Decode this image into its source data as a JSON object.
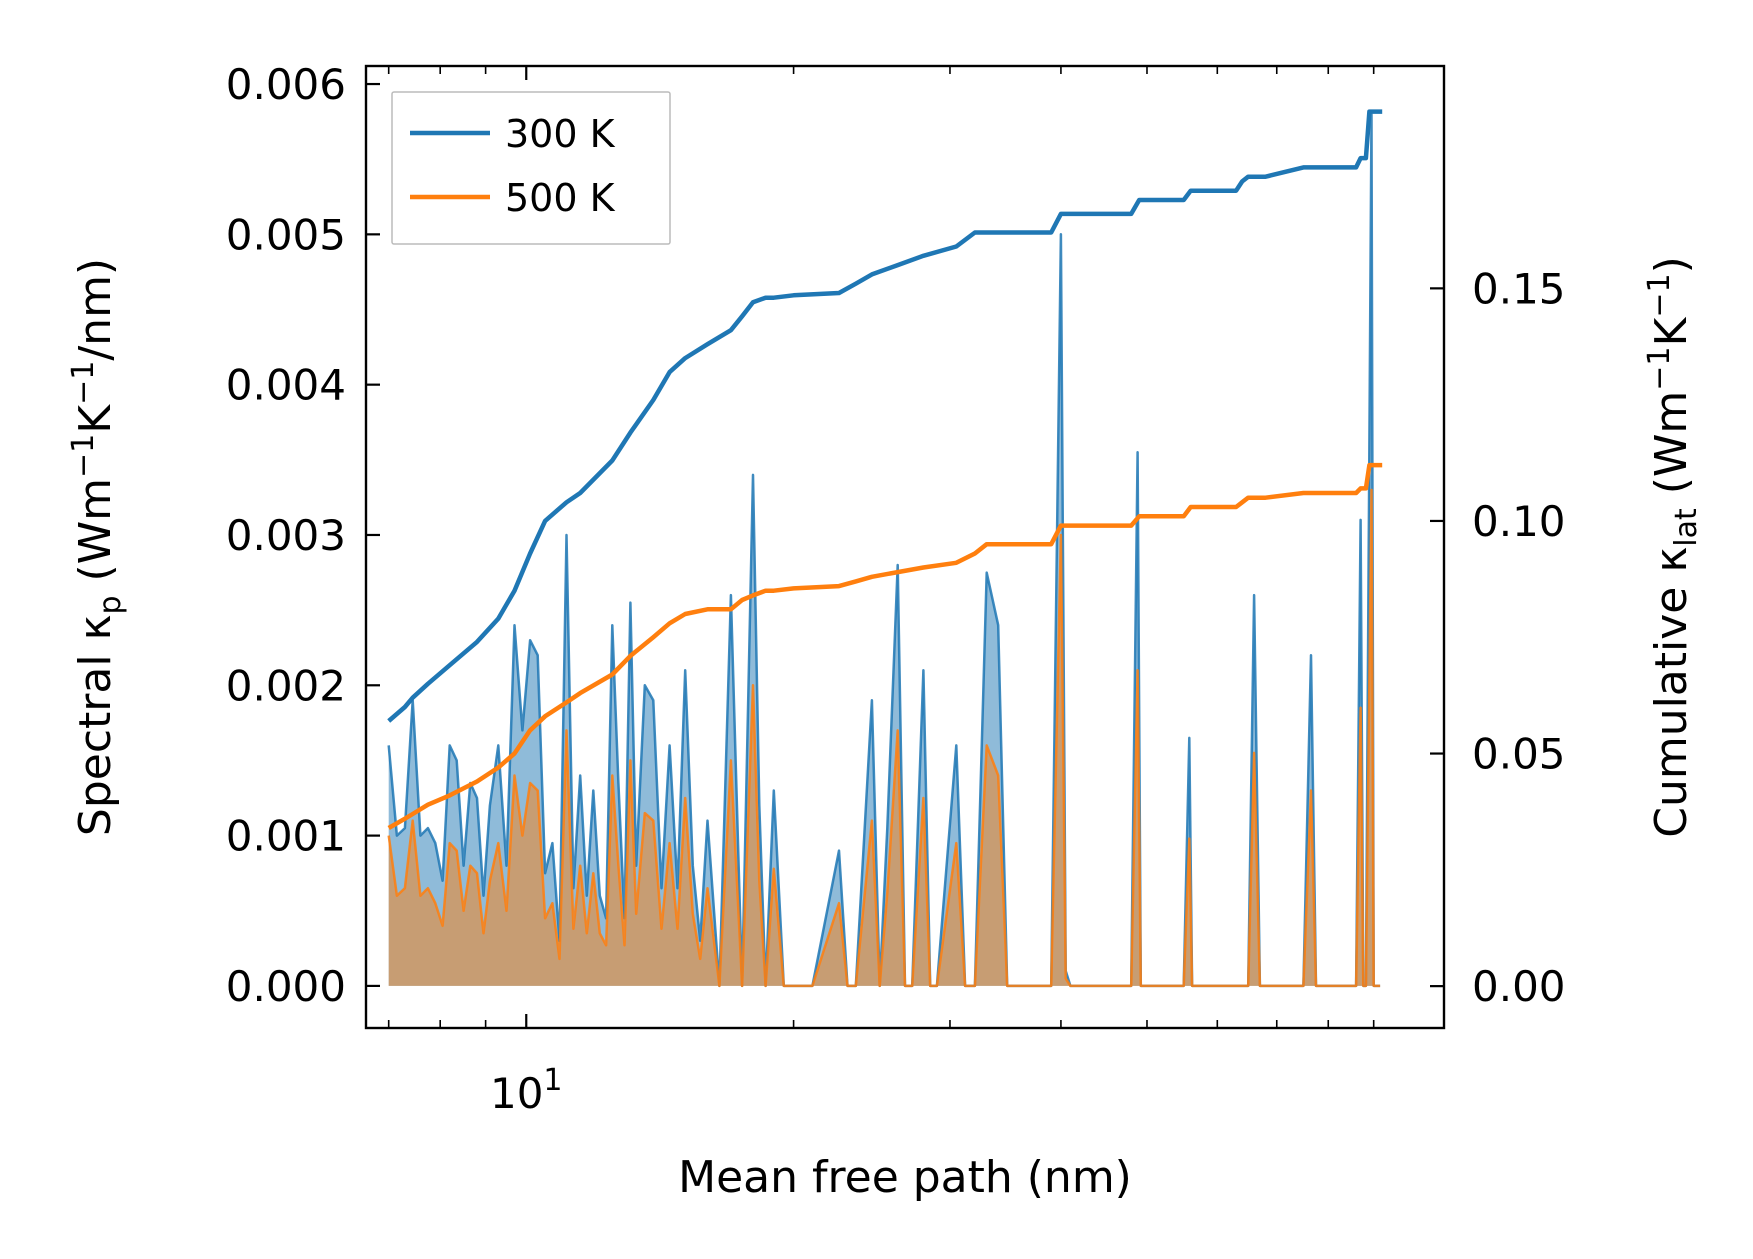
{
  "chart_data": {
    "type": "line",
    "xlabel": "Mean free path (nm)",
    "ylabel_left": {
      "main": "Spectral κ",
      "sub": "p",
      "open": " (Wm",
      "sup1": "−1",
      "mid": "K",
      "sup2": "−1",
      "close": "/nm)"
    },
    "ylabel_right": {
      "main": "Cumulative κ",
      "sub": "lat",
      "open": " (Wm",
      "sup1": "−1",
      "mid": "K",
      "sup2": "−1",
      "close": ")"
    },
    "x_scale": "log",
    "xlim": [
      6.6,
      108
    ],
    "ylim_left": [
      -0.00028,
      0.00612
    ],
    "ylim_right": [
      -0.009,
      0.1978
    ],
    "x_major_tick": {
      "base": "10",
      "exp": "1",
      "value": 10
    },
    "x_minor_ticks": [
      7,
      8,
      9,
      20,
      30,
      40,
      50,
      60,
      70,
      80,
      90
    ],
    "y_left_ticks": [
      {
        "value": 0.0,
        "label": "0.000"
      },
      {
        "value": 0.001,
        "label": "0.001"
      },
      {
        "value": 0.002,
        "label": "0.002"
      },
      {
        "value": 0.003,
        "label": "0.003"
      },
      {
        "value": 0.004,
        "label": "0.004"
      },
      {
        "value": 0.005,
        "label": "0.005"
      },
      {
        "value": 0.006,
        "label": "0.006"
      }
    ],
    "y_right_ticks": [
      {
        "value": 0.0,
        "label": "0.00"
      },
      {
        "value": 0.05,
        "label": "0.05"
      },
      {
        "value": 0.1,
        "label": "0.10"
      },
      {
        "value": 0.15,
        "label": "0.15"
      }
    ],
    "legend": {
      "position": "top-left",
      "entries": [
        {
          "label": "300 K",
          "color": "#1f77b4"
        },
        {
          "label": "500 K",
          "color": "#ff7f0e"
        }
      ]
    },
    "series": [
      {
        "name": "300 K spectral",
        "axis": "left",
        "kind": "filled-line",
        "color": "#1f77b4",
        "fill_color": "#1f77b4",
        "fill_opacity": 0.5,
        "x": [
          7.0,
          7.15,
          7.3,
          7.45,
          7.6,
          7.75,
          7.9,
          8.05,
          8.2,
          8.35,
          8.5,
          8.65,
          8.8,
          8.95,
          9.1,
          9.3,
          9.5,
          9.7,
          9.9,
          10.1,
          10.3,
          10.5,
          10.7,
          10.9,
          11.1,
          11.3,
          11.5,
          11.7,
          11.9,
          12.1,
          12.3,
          12.5,
          12.7,
          12.9,
          13.1,
          13.3,
          13.6,
          13.9,
          14.2,
          14.5,
          14.8,
          15.1,
          15.4,
          15.7,
          16.0,
          16.5,
          17.0,
          17.5,
          18.0,
          18.3,
          18.6,
          19.0,
          19.5,
          20.0,
          21.0,
          22.5,
          23.0,
          23.5,
          24.5,
          25.0,
          25.5,
          26.2,
          26.7,
          27.2,
          28.0,
          28.5,
          29.0,
          30.5,
          31.2,
          32.0,
          33.0,
          34.0,
          34.8,
          35.5,
          36.3,
          37.0,
          39.0,
          40.0,
          40.5,
          41.0,
          42.0,
          48.0,
          48.8,
          49.2,
          50.0,
          55.0,
          55.8,
          56.2,
          57.0,
          63.0,
          64.0,
          65.0,
          66.0,
          67.0,
          68.0,
          75.0,
          76.5,
          77.5,
          86.0,
          87.0,
          87.6,
          88.2,
          89.5,
          90.0,
          90.5,
          91.5
        ],
        "y": [
          0.0016,
          0.001,
          0.00105,
          0.0019,
          0.001,
          0.00105,
          0.00095,
          0.0007,
          0.0016,
          0.0015,
          0.0008,
          0.00135,
          0.00125,
          0.0006,
          0.0012,
          0.0016,
          0.0008,
          0.0024,
          0.0017,
          0.0023,
          0.0022,
          0.00075,
          0.00095,
          0.0003,
          0.003,
          0.00065,
          0.0014,
          0.0006,
          0.0013,
          0.0006,
          0.00045,
          0.0024,
          0.00135,
          0.00045,
          0.00255,
          0.0008,
          0.002,
          0.0019,
          0.00065,
          0.0016,
          0.00065,
          0.0021,
          0.0008,
          0.0003,
          0.0011,
          0.0,
          0.0026,
          0.0,
          0.0034,
          0.0012,
          0.0,
          0.0013,
          0.0,
          0.0,
          0.0,
          0.0009,
          0.0,
          0.0,
          0.0019,
          0.0,
          0.00105,
          0.0028,
          0.0,
          0.0,
          0.0021,
          0.0,
          0.0,
          0.0016,
          0.0,
          0.0,
          0.00275,
          0.0024,
          0.0,
          0.0,
          0.0,
          0.0,
          0.0,
          0.005,
          0.0001,
          0.0,
          0.0,
          0.0,
          0.00355,
          0.0,
          0.0,
          0.0,
          0.00165,
          0.0,
          0.0,
          0.0,
          0.0,
          0.0,
          0.0026,
          0.0,
          0.0,
          0.0,
          0.0022,
          0.0,
          0.0,
          0.0031,
          0.0,
          0.0,
          0.0058,
          0.0,
          0.0,
          0.0
        ]
      },
      {
        "name": "500 K spectral",
        "axis": "left",
        "kind": "filled-line",
        "color": "#ff7f0e",
        "fill_color": "#ff7f0e",
        "fill_opacity": 0.5,
        "x": [
          7.0,
          7.15,
          7.3,
          7.45,
          7.6,
          7.75,
          7.9,
          8.05,
          8.2,
          8.35,
          8.5,
          8.65,
          8.8,
          8.95,
          9.1,
          9.3,
          9.5,
          9.7,
          9.9,
          10.1,
          10.3,
          10.5,
          10.7,
          10.9,
          11.1,
          11.3,
          11.5,
          11.7,
          11.9,
          12.1,
          12.3,
          12.5,
          12.7,
          12.9,
          13.1,
          13.3,
          13.6,
          13.9,
          14.2,
          14.5,
          14.8,
          15.1,
          15.4,
          15.7,
          16.0,
          16.5,
          17.0,
          17.5,
          18.0,
          18.3,
          18.6,
          19.0,
          19.5,
          20.0,
          21.0,
          22.5,
          23.0,
          23.5,
          24.5,
          25.0,
          25.5,
          26.2,
          26.7,
          27.2,
          28.0,
          28.5,
          29.0,
          30.5,
          31.2,
          32.0,
          33.0,
          34.0,
          34.8,
          35.5,
          36.3,
          37.0,
          39.0,
          40.0,
          40.5,
          41.0,
          42.0,
          48.0,
          48.8,
          49.2,
          50.0,
          55.0,
          55.8,
          56.2,
          57.0,
          63.0,
          64.0,
          65.0,
          66.0,
          67.0,
          68.0,
          75.0,
          76.5,
          77.5,
          86.0,
          87.0,
          87.6,
          88.2,
          89.5,
          90.0,
          90.5,
          91.5
        ],
        "y": [
          0.001,
          0.0006,
          0.00065,
          0.0011,
          0.0006,
          0.00065,
          0.00055,
          0.0004,
          0.00095,
          0.0009,
          0.0005,
          0.0008,
          0.00075,
          0.00035,
          0.0007,
          0.00095,
          0.0005,
          0.0014,
          0.001,
          0.00135,
          0.0013,
          0.00045,
          0.00055,
          0.00018,
          0.0017,
          0.00038,
          0.0008,
          0.00035,
          0.00075,
          0.00035,
          0.00027,
          0.0014,
          0.0008,
          0.00027,
          0.0015,
          0.00048,
          0.00115,
          0.0011,
          0.00038,
          0.00095,
          0.00038,
          0.00125,
          0.00048,
          0.00018,
          0.00065,
          0.0,
          0.0015,
          0.0,
          0.002,
          0.0007,
          0.0,
          0.00078,
          0.0,
          0.0,
          0.0,
          0.00055,
          0.0,
          0.0,
          0.0011,
          0.0,
          0.00062,
          0.0017,
          0.0,
          0.0,
          0.00125,
          0.0,
          0.0,
          0.00095,
          0.0,
          0.0,
          0.0016,
          0.0014,
          0.0,
          0.0,
          0.0,
          0.0,
          0.0,
          0.003,
          5e-05,
          0.0,
          0.0,
          0.0,
          0.0021,
          0.0,
          0.0,
          0.0,
          0.00098,
          0.0,
          0.0,
          0.0,
          0.0,
          0.0,
          0.00155,
          0.0,
          0.0,
          0.0,
          0.0013,
          0.0,
          0.0,
          0.00185,
          0.0,
          0.0,
          0.0033,
          0.0,
          0.0,
          0.0
        ]
      },
      {
        "name": "300 K cumulative",
        "axis": "right",
        "kind": "line",
        "color": "#1f77b4",
        "x": [
          7.0,
          7.3,
          7.45,
          7.75,
          8.2,
          8.8,
          9.3,
          9.7,
          10.1,
          10.5,
          11.1,
          11.5,
          12.5,
          13.1,
          13.9,
          14.5,
          15.1,
          16.0,
          17.0,
          17.5,
          18.0,
          18.6,
          19.0,
          20.0,
          22.5,
          23.5,
          24.5,
          26.2,
          28.0,
          30.5,
          32.0,
          33.0,
          39.0,
          40.0,
          48.0,
          49.0,
          55.0,
          56.0,
          63.0,
          64.0,
          65.0,
          68.0,
          75.0,
          76.5,
          86.0,
          87.0,
          88.2,
          89.0,
          92.0
        ],
        "y": [
          0.057,
          0.06,
          0.062,
          0.065,
          0.069,
          0.074,
          0.079,
          0.085,
          0.093,
          0.1,
          0.104,
          0.106,
          0.113,
          0.119,
          0.126,
          0.132,
          0.135,
          0.138,
          0.141,
          0.144,
          0.147,
          0.148,
          0.148,
          0.1485,
          0.149,
          0.151,
          0.153,
          0.155,
          0.157,
          0.159,
          0.162,
          0.162,
          0.162,
          0.166,
          0.166,
          0.169,
          0.169,
          0.171,
          0.171,
          0.173,
          0.174,
          0.174,
          0.176,
          0.176,
          0.176,
          0.178,
          0.178,
          0.188,
          0.188
        ]
      },
      {
        "name": "500 K cumulative",
        "axis": "right",
        "kind": "line",
        "color": "#ff7f0e",
        "x": [
          7.0,
          7.3,
          7.45,
          7.75,
          8.2,
          8.8,
          9.3,
          9.7,
          10.1,
          10.5,
          11.1,
          11.5,
          12.5,
          13.1,
          13.9,
          14.5,
          15.1,
          16.0,
          17.0,
          17.5,
          18.0,
          18.6,
          19.0,
          20.0,
          22.5,
          23.5,
          24.5,
          26.2,
          28.0,
          30.5,
          32.0,
          33.0,
          39.0,
          40.0,
          48.0,
          49.0,
          55.0,
          56.0,
          63.0,
          64.0,
          65.0,
          68.0,
          75.0,
          76.5,
          86.0,
          87.0,
          88.2,
          89.0,
          92.0
        ],
        "y": [
          0.034,
          0.036,
          0.037,
          0.039,
          0.041,
          0.044,
          0.047,
          0.05,
          0.055,
          0.058,
          0.061,
          0.063,
          0.067,
          0.071,
          0.075,
          0.078,
          0.08,
          0.081,
          0.081,
          0.083,
          0.084,
          0.085,
          0.085,
          0.0855,
          0.086,
          0.087,
          0.088,
          0.089,
          0.09,
          0.091,
          0.093,
          0.095,
          0.095,
          0.099,
          0.099,
          0.101,
          0.101,
          0.103,
          0.103,
          0.104,
          0.105,
          0.105,
          0.106,
          0.106,
          0.106,
          0.107,
          0.107,
          0.112,
          0.112
        ]
      }
    ]
  }
}
